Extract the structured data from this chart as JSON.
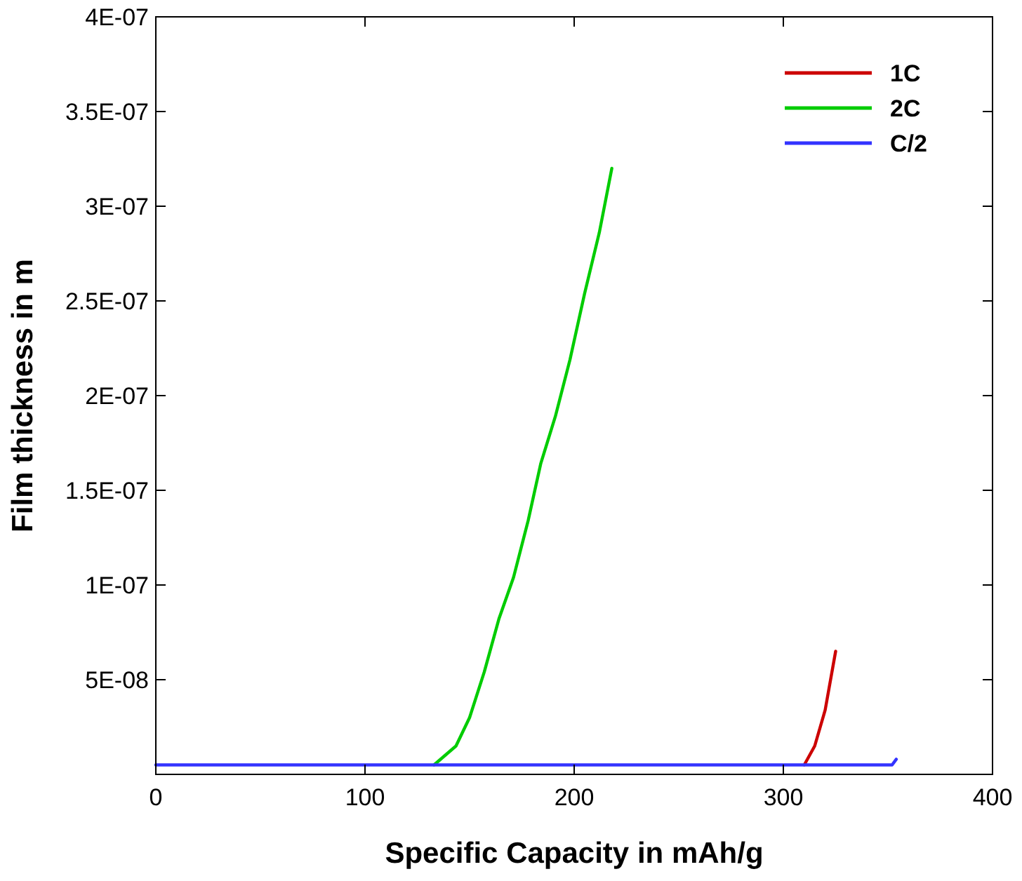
{
  "chart_data": {
    "type": "line",
    "xlabel": "Specific Capacity in mAh/g",
    "ylabel": "Film thickness in m",
    "xlim": [
      0,
      400
    ],
    "xticks": [
      0,
      100,
      200,
      300,
      400
    ],
    "ylim": [
      0,
      4e-07
    ],
    "yticks": [
      {
        "value": 5e-08,
        "label": "5E-08"
      },
      {
        "value": 1e-07,
        "label": "1E-07"
      },
      {
        "value": 1.5e-07,
        "label": "1.5E-07"
      },
      {
        "value": 2e-07,
        "label": "2E-07"
      },
      {
        "value": 2.5e-07,
        "label": "2.5E-07"
      },
      {
        "value": 3e-07,
        "label": "3E-07"
      },
      {
        "value": 3.5e-07,
        "label": "3.5E-07"
      },
      {
        "value": 4e-07,
        "label": "4E-07"
      }
    ],
    "legend": "top right",
    "grid": false,
    "marker": "none",
    "line_style": "solid",
    "series": [
      {
        "name": "1C",
        "color": "#cc0000",
        "x": [
          310,
          315,
          320,
          325
        ],
        "values": [
          5e-09,
          1.5e-08,
          3.4e-08,
          6.5e-08
        ]
      },
      {
        "name": "2C",
        "color": "#00cc00",
        "x": [
          133,
          143.5,
          150,
          157,
          164,
          171,
          178,
          184,
          191,
          198,
          205,
          212,
          218
        ],
        "values": [
          5e-09,
          1.5e-08,
          3e-08,
          5.4e-08,
          8.2e-08,
          1.04e-07,
          1.34e-07,
          1.64e-07,
          1.89e-07,
          2.19e-07,
          2.54e-07,
          2.86e-07,
          3.2e-07
        ]
      },
      {
        "name": "C/2",
        "color": "#3333ff",
        "x": [
          0,
          352,
          354
        ],
        "values": [
          5e-09,
          5e-09,
          8e-09
        ]
      }
    ]
  }
}
